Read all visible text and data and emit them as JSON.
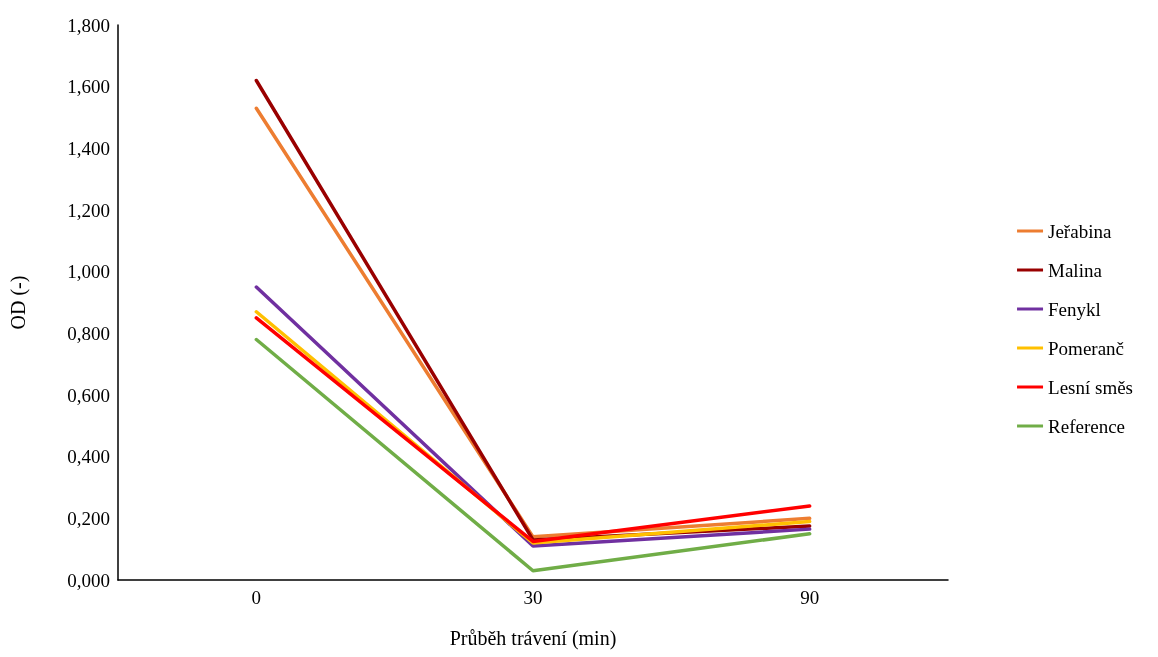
{
  "chart_data": {
    "type": "line",
    "xlabel": "Průběh trávení (min)",
    "ylabel": "OD (-)",
    "categories": [
      "0",
      "30",
      "90"
    ],
    "ylim": [
      0,
      1.8
    ],
    "yticks": [
      {
        "value": 0,
        "label": "0,000"
      },
      {
        "value": 0.2,
        "label": "0,200"
      },
      {
        "value": 0.4,
        "label": "0,400"
      },
      {
        "value": 0.6,
        "label": "0,600"
      },
      {
        "value": 0.8,
        "label": "0,800"
      },
      {
        "value": 1,
        "label": "1,000"
      },
      {
        "value": 1.2,
        "label": "1,200"
      },
      {
        "value": 1.4,
        "label": "1,400"
      },
      {
        "value": 1.6,
        "label": "1,600"
      },
      {
        "value": 1.8,
        "label": "1,800"
      }
    ],
    "grid": false,
    "legend": "right",
    "marker": "none",
    "line_style": "solid",
    "series": [
      {
        "name": "Jeřabina",
        "color": "#ed7d31",
        "values": [
          1.53,
          0.14,
          0.2
        ]
      },
      {
        "name": "Malina",
        "color": "#990000",
        "values": [
          1.62,
          0.13,
          0.175
        ]
      },
      {
        "name": "Fenykl",
        "color": "#7030a0",
        "values": [
          0.95,
          0.11,
          0.165
        ]
      },
      {
        "name": "Pomeranč",
        "color": "#ffc000",
        "values": [
          0.87,
          0.12,
          0.19
        ]
      },
      {
        "name": "Lesní směs",
        "color": "#ff0000",
        "values": [
          0.85,
          0.125,
          0.24
        ]
      },
      {
        "name": "Reference",
        "color": "#70ad47",
        "values": [
          0.78,
          0.03,
          0.15
        ]
      }
    ]
  }
}
